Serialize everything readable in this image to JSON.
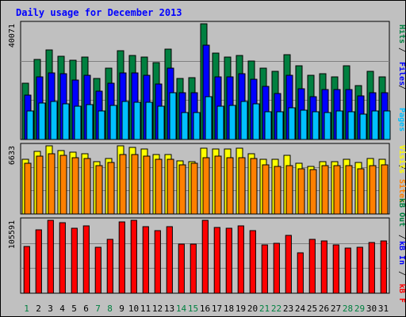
{
  "chart_data": [
    {
      "type": "bar",
      "title": "Daily usage for December 2013",
      "categories": [
        "1",
        "2",
        "3",
        "4",
        "5",
        "6",
        "7",
        "8",
        "9",
        "10",
        "11",
        "12",
        "13",
        "14",
        "15",
        "16",
        "17",
        "18",
        "19",
        "20",
        "21",
        "22",
        "23",
        "24",
        "25",
        "26",
        "27",
        "28",
        "29",
        "30",
        "31"
      ],
      "weekend_days": [
        "1",
        "7",
        "8",
        "14",
        "15",
        "21",
        "22",
        "28",
        "29"
      ],
      "max_label": "40071",
      "legend": [
        "Pages",
        "Files",
        "Hits"
      ],
      "series": [
        {
          "name": "Hits",
          "color": "#008040",
          "values": [
            19500,
            27700,
            30900,
            28800,
            27500,
            28600,
            21100,
            24800,
            30800,
            29100,
            28500,
            26600,
            31300,
            21000,
            21300,
            40071,
            29800,
            28600,
            29000,
            27200,
            24800,
            23600,
            29400,
            25500,
            22300,
            22800,
            21600,
            25400,
            18600,
            23500,
            21600
          ]
        },
        {
          "name": "Files",
          "color": "#0000ff",
          "values": [
            15400,
            21600,
            23100,
            22700,
            20600,
            22200,
            16800,
            19400,
            23000,
            23100,
            22200,
            19200,
            24600,
            16200,
            16300,
            32600,
            21800,
            21600,
            22900,
            20800,
            18300,
            16000,
            22200,
            17500,
            14700,
            17400,
            17300,
            17200,
            15200,
            16200,
            16300
          ]
        },
        {
          "name": "Pages",
          "color": "#00c0ff",
          "values": [
            9800,
            12500,
            13100,
            12400,
            11500,
            12100,
            9900,
            11800,
            13200,
            12900,
            12800,
            11600,
            16100,
            9200,
            9400,
            14900,
            11600,
            11800,
            13300,
            12400,
            9500,
            9600,
            10900,
            10100,
            9600,
            9200,
            9800,
            9700,
            8700,
            9900,
            10000
          ]
        }
      ]
    },
    {
      "type": "bar",
      "max_label": "6633",
      "legend": [
        "Sites",
        "Visits"
      ],
      "series": [
        {
          "name": "Visits",
          "color": "#ffff00",
          "values": [
            5300,
            6100,
            6633,
            6200,
            6000,
            5900,
            5100,
            5400,
            6600,
            6500,
            6300,
            5800,
            5800,
            5200,
            5100,
            6400,
            6300,
            6300,
            6400,
            5900,
            5300,
            5300,
            5700,
            4900,
            4600,
            5100,
            5100,
            5300,
            5000,
            5400,
            5300
          ]
        },
        {
          "name": "Sites",
          "color": "#ff8000",
          "values": [
            4900,
            5600,
            5900,
            5700,
            5500,
            5400,
            4700,
            5000,
            5800,
            5800,
            5600,
            5300,
            5300,
            4800,
            4900,
            5500,
            5600,
            5500,
            5500,
            5400,
            4800,
            4600,
            4700,
            4400,
            4300,
            4700,
            4700,
            4700,
            4400,
            4700,
            4800
          ]
        }
      ]
    },
    {
      "type": "bar",
      "max_label": "105591",
      "legend": [
        "kB F",
        "kB In",
        "kB Out"
      ],
      "series": [
        {
          "name": "kB F",
          "color": "#ff0000",
          "values": [
            68000,
            92000,
            105591,
            102000,
            94000,
            97000,
            66000,
            78000,
            103000,
            105591,
            96000,
            91000,
            96000,
            71000,
            71000,
            105591,
            95000,
            94000,
            97000,
            91000,
            70000,
            72000,
            84000,
            58000,
            78000,
            76000,
            70000,
            65000,
            66000,
            74000,
            76000
          ]
        }
      ]
    }
  ]
}
